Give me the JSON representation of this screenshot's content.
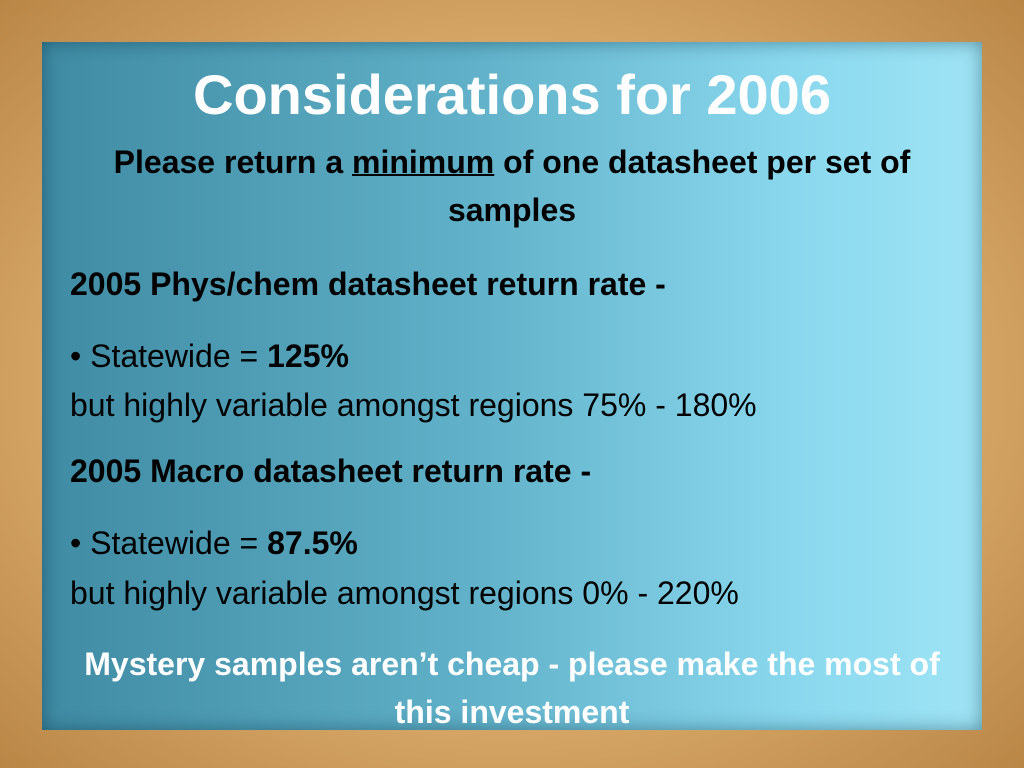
{
  "title": "Considerations for 2006",
  "subtitle": {
    "before": "Please return a ",
    "emphasis": "minimum",
    "after": " of one datasheet per set of samples"
  },
  "sections": [
    {
      "heading": "2005 Phys/chem datasheet return rate -",
      "bullet_label": "• Statewide = ",
      "bullet_value": "125%",
      "note": "but highly variable amongst regions 75% - 180%"
    },
    {
      "heading": "2005 Macro datasheet return rate -",
      "bullet_label": "• Statewide = ",
      "bullet_value": "87.5%",
      "note": "but highly variable amongst regions 0% - 220%"
    }
  ],
  "footer": "Mystery samples aren’t cheap - please make the most of this investment"
}
